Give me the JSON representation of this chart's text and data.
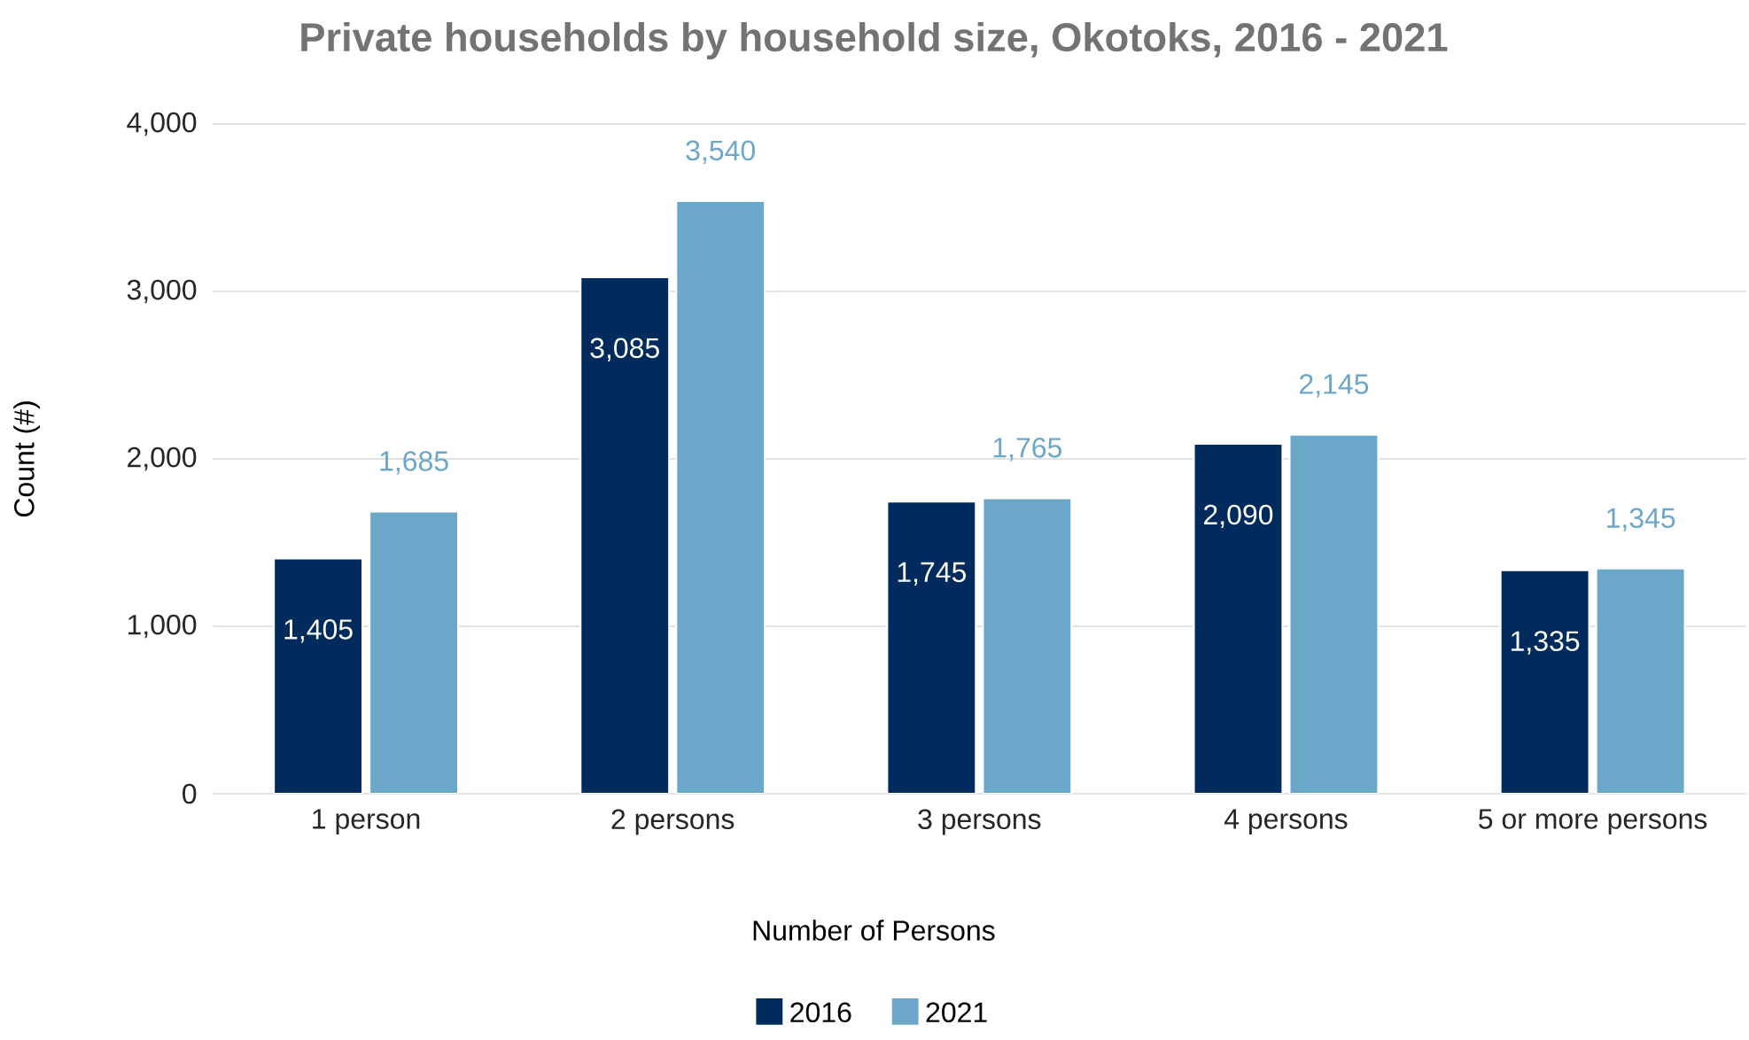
{
  "chart_data": {
    "type": "bar",
    "title": "Private households by household size, Okotoks, 2016 - 2021",
    "xlabel": "Number of Persons",
    "ylabel": "Count (#)",
    "categories": [
      "1 person",
      "2 persons",
      "3 persons",
      "4 persons",
      "5 or more persons"
    ],
    "series": [
      {
        "name": "2016",
        "color": "#002b5c",
        "values": [
          1405,
          3085,
          1745,
          2090,
          1335
        ],
        "value_labels": [
          "1,405",
          "3,085",
          "1,745",
          "2,090",
          "1,335"
        ]
      },
      {
        "name": "2021",
        "color": "#6aa7c9",
        "values": [
          1685,
          3540,
          1765,
          2145,
          1345
        ],
        "value_labels": [
          "1,685",
          "3,540",
          "1,765",
          "2,145",
          "1,345"
        ]
      }
    ],
    "ylim": [
      0,
      4000
    ],
    "yticks": [
      {
        "value": 0,
        "label": "0"
      },
      {
        "value": 1000,
        "label": "1,000"
      },
      {
        "value": 2000,
        "label": "2,000"
      },
      {
        "value": 3000,
        "label": "3,000"
      },
      {
        "value": 4000,
        "label": "4,000"
      }
    ],
    "grid": "y",
    "legend": "bottom"
  }
}
